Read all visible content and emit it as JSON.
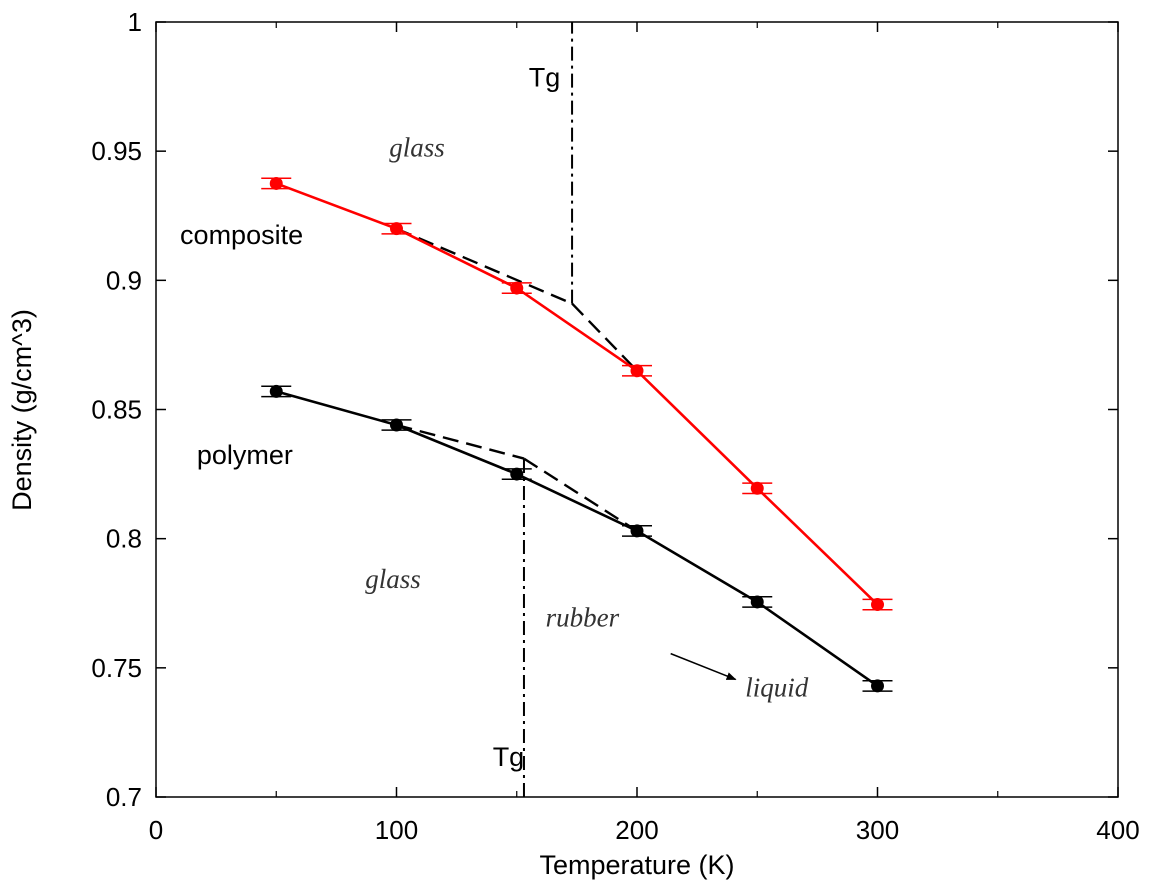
{
  "chart_data": {
    "type": "line",
    "title": "",
    "xlabel": "Temperature (K)",
    "ylabel": "Density (g/cm^3)",
    "xlim": [
      0,
      400
    ],
    "ylim": [
      0.7,
      1.0
    ],
    "x_ticks": [
      0,
      100,
      200,
      300,
      400
    ],
    "y_ticks": [
      0.7,
      0.75,
      0.8,
      0.85,
      0.9,
      0.95,
      1.0
    ],
    "x_tick_labels": [
      "0",
      "100",
      "200",
      "300",
      "400"
    ],
    "y_tick_labels": [
      "0.7",
      "0.75",
      "0.8",
      "0.85",
      "0.9",
      "0.95",
      "1"
    ],
    "grid": false,
    "legend": "none",
    "series": [
      {
        "name": "composite",
        "color": "#ff0000",
        "marker": "circle",
        "x": [
          50,
          100,
          150,
          200,
          250,
          300
        ],
        "values": [
          0.9375,
          0.92,
          0.897,
          0.865,
          0.8195,
          0.7745
        ],
        "error": [
          0.002,
          0.002,
          0.002,
          0.002,
          0.002,
          0.002
        ]
      },
      {
        "name": "polymer",
        "color": "#000000",
        "marker": "circle",
        "x": [
          50,
          100,
          150,
          200,
          250,
          300
        ],
        "values": [
          0.857,
          0.844,
          0.825,
          0.803,
          0.7755,
          0.743
        ],
        "error": [
          0.002,
          0.002,
          0.002,
          0.002,
          0.002,
          0.002
        ]
      }
    ],
    "fit_lines": [
      {
        "for": "composite",
        "style": "dashed",
        "color": "#000000",
        "x": [
          100,
          173
        ],
        "y": [
          0.92,
          0.891
        ]
      },
      {
        "for": "composite",
        "style": "dashed",
        "color": "#000000",
        "x": [
          173,
          200
        ],
        "y": [
          0.891,
          0.865
        ]
      },
      {
        "for": "polymer",
        "style": "dashed",
        "color": "#000000",
        "x": [
          100,
          153
        ],
        "y": [
          0.844,
          0.831
        ]
      },
      {
        "for": "polymer",
        "style": "dashed",
        "color": "#000000",
        "x": [
          153,
          200
        ],
        "y": [
          0.831,
          0.803
        ]
      }
    ],
    "tg_lines": [
      {
        "label": "Tg",
        "x": 173,
        "y_from": 0.891,
        "y_to": 1.0,
        "label_x": 155,
        "label_y": 0.975
      },
      {
        "label": "Tg",
        "x": 153,
        "y_from": 0.7,
        "y_to": 0.831,
        "label_x": 140,
        "label_y": 0.712
      }
    ],
    "annotations": [
      {
        "text": "composite",
        "style": "series",
        "x": 10,
        "y": 0.914
      },
      {
        "text": "polymer",
        "style": "series",
        "x": 17,
        "y": 0.829
      },
      {
        "text": "glass",
        "style": "phase",
        "x": 97,
        "y": 0.948
      },
      {
        "text": "glass",
        "style": "phase",
        "x": 87,
        "y": 0.781
      },
      {
        "text": "rubber",
        "style": "phase",
        "x": 162,
        "y": 0.766
      },
      {
        "text": "liquid",
        "style": "phase",
        "x": 245,
        "y": 0.739
      }
    ],
    "arrows": [
      {
        "from": [
          214,
          0.7555
        ],
        "to": [
          241,
          0.7455
        ]
      }
    ]
  }
}
